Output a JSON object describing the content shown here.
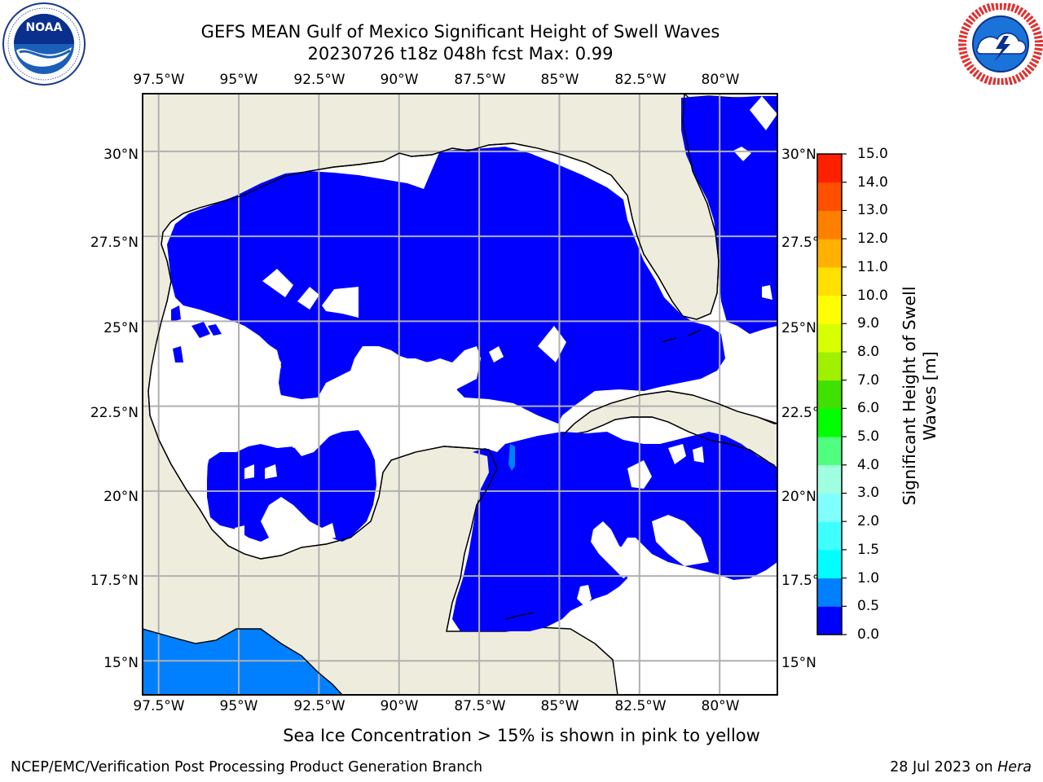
{
  "header": {
    "title_line1": "GEFS MEAN Gulf of Mexico Significant Height of Swell Waves",
    "title_line2": "20230726 t18z 048h fcst   Max: 0.99"
  },
  "logos": {
    "left": {
      "name": "noaa-logo",
      "text": "NOAA",
      "ring_text": "NATIONAL OCEANIC AND ATMOSPHERIC ADMINISTRATION · U.S. DEPARTMENT OF COMMERCE"
    },
    "right": {
      "name": "nws-logo",
      "ring_text": "NATIONAL WEATHER SERVICE"
    }
  },
  "map": {
    "lon_ticks": [
      "97.5°W",
      "95°W",
      "92.5°W",
      "90°W",
      "87.5°W",
      "85°W",
      "82.5°W",
      "80°W"
    ],
    "lat_ticks_left": [
      "30°N",
      "27.5°N",
      "25°N",
      "22.5°N",
      "20°N",
      "17.5°N",
      "15°N"
    ],
    "lat_ticks_right": [
      "30°N",
      "27.5°N",
      "25°N",
      "22.5°N",
      "20°N",
      "17.5°N",
      "15°N"
    ],
    "lon_range": [
      -98,
      -78.2
    ],
    "lat_range": [
      14,
      31.7
    ],
    "colors": {
      "land": "#eeeddd",
      "swell_0_05": "#0000ff",
      "swell_05_10": "#0080ff",
      "no_data": "#ffffff",
      "grid": "#b0b0b0"
    }
  },
  "colorbar": {
    "label": "Significant Height of Swell Waves [m]",
    "label_line1": "Significant Height of Swell",
    "label_line2": "Waves [m]",
    "ticks": [
      "15.0",
      "14.0",
      "13.0",
      "12.0",
      "11.0",
      "10.0",
      "9.0",
      "8.0",
      "7.0",
      "6.0",
      "5.0",
      "4.0",
      "3.0",
      "2.0",
      "1.5",
      "1.0",
      "0.5",
      "0.0"
    ],
    "bins_bottom_to_top": [
      "#0000ff",
      "#0080ff",
      "#00ffff",
      "#40ffff",
      "#80ffff",
      "#a0ffe0",
      "#50ff80",
      "#00ff00",
      "#40e000",
      "#a0f000",
      "#d8ff00",
      "#ffff00",
      "#ffe000",
      "#ffb000",
      "#ff8000",
      "#ff5000",
      "#ff2000"
    ]
  },
  "footer": {
    "note": "Sea Ice Concentration > 15% is shown in pink to yellow",
    "left": "NCEP/EMC/Verification Post Processing Product Generation Branch",
    "right_prefix": "28 Jul 2023 on ",
    "right_machine": "Hera"
  }
}
